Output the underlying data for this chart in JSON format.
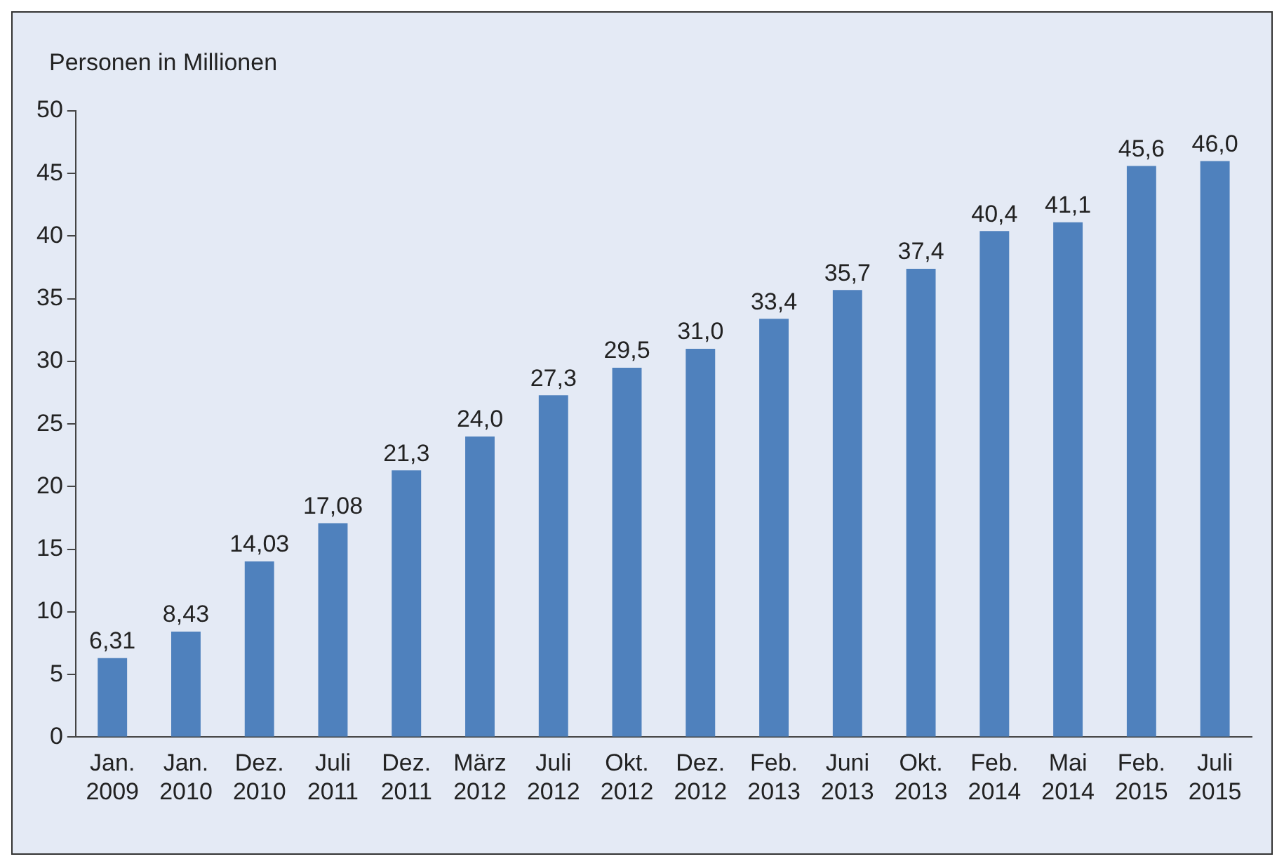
{
  "chart_data": {
    "type": "bar",
    "ylabel": "Personen in Millionen",
    "categories": [
      "Jan. 2009",
      "Jan. 2010",
      "Dez. 2010",
      "Juli 2011",
      "Dez. 2011",
      "März 2012",
      "Juli 2012",
      "Okt. 2012",
      "Dez. 2012",
      "Feb. 2013",
      "Juni 2013",
      "Okt. 2013",
      "Feb. 2014",
      "Mai 2014",
      "Feb. 2015",
      "Juli 2015"
    ],
    "values": [
      6.31,
      8.43,
      14.03,
      17.08,
      21.3,
      24.0,
      27.3,
      29.5,
      31.0,
      33.4,
      35.7,
      37.4,
      40.4,
      41.1,
      45.6,
      46.0
    ],
    "value_labels": [
      "6,31",
      "8,43",
      "14,03",
      "17,08",
      "21,3",
      "24,0",
      "27,3",
      "29,5",
      "31,0",
      "33,4",
      "35,7",
      "37,4",
      "40,4",
      "41,1",
      "45,6",
      "46,0"
    ],
    "color": "#4f81bd",
    "ylim": [
      0,
      50
    ],
    "yticks": [
      0,
      5,
      10,
      15,
      20,
      25,
      30,
      35,
      40,
      45,
      50
    ],
    "grid": false,
    "legend": false
  }
}
